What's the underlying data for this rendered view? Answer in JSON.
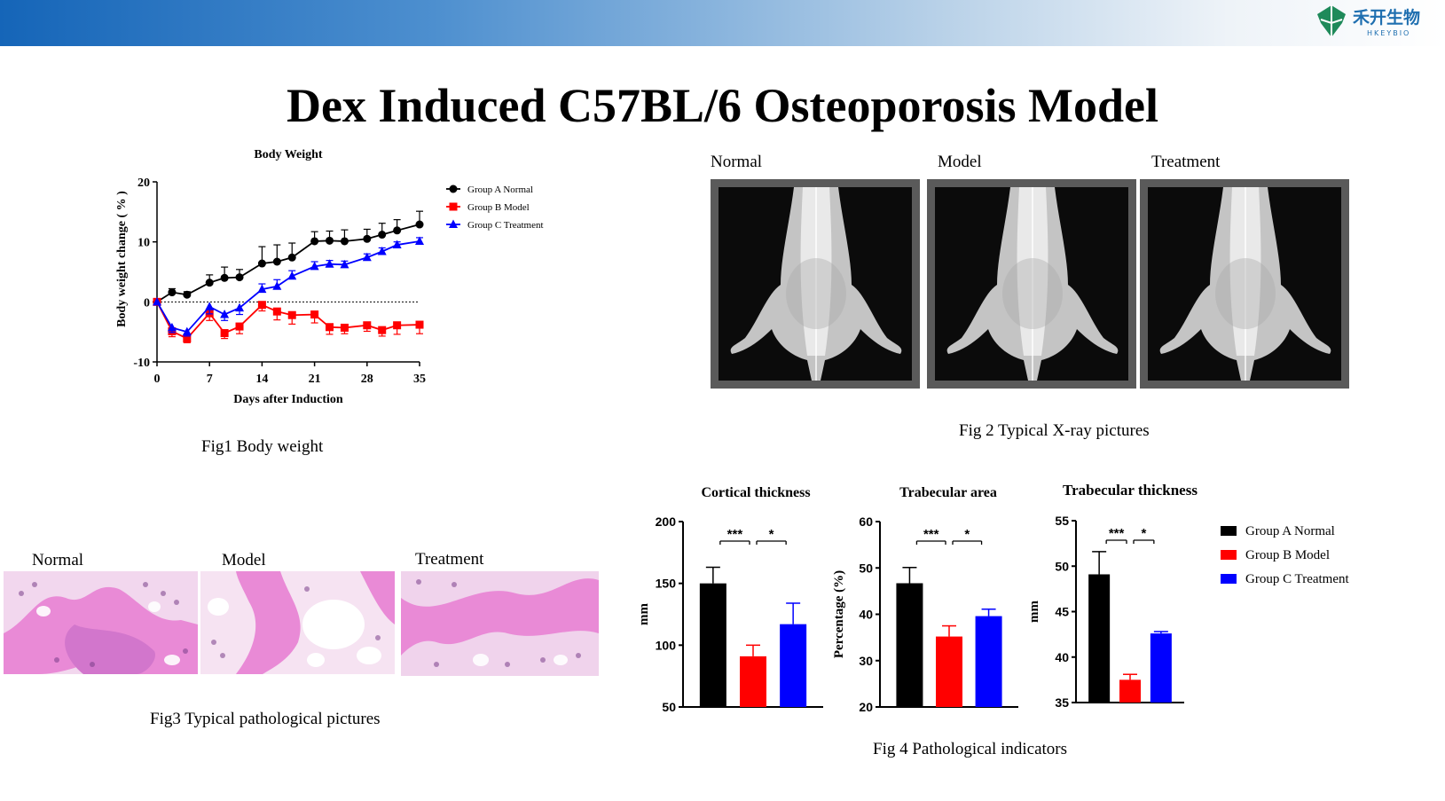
{
  "header": {
    "logo_text": "禾开生物",
    "logo_subtext": "HKEYBIO",
    "colors": {
      "bar_start": "#1565b8",
      "bar_end": "#ffffff",
      "logo": "#1f8a5a"
    }
  },
  "page_title": "Dex Induced C57BL/6 Osteoporosis Model",
  "fig1": {
    "caption": "Fig1 Body weight",
    "chart_data": {
      "type": "line",
      "title": "Body Weight",
      "xlabel": "Days after Induction",
      "ylabel": "Body weight change ( % )",
      "xlim": [
        0,
        35
      ],
      "ylim": [
        -10,
        20
      ],
      "xticks": [
        "0",
        "7",
        "14",
        "21",
        "28",
        "35"
      ],
      "yticks": [
        "-10",
        "0",
        "10",
        "20"
      ],
      "reference_line_y": 0,
      "legend_position": "right",
      "series": [
        {
          "name": "Group A Normal",
          "color": "#000000",
          "marker": "circle",
          "x": [
            0,
            2,
            4,
            7,
            9,
            11,
            14,
            16,
            18,
            21,
            23,
            25,
            28,
            30,
            32,
            35
          ],
          "y": [
            0,
            1.6,
            1.2,
            3.2,
            4.0,
            4.1,
            6.4,
            6.7,
            7.4,
            10.1,
            10.2,
            10.1,
            10.5,
            11.2,
            11.9,
            12.9
          ],
          "err": [
            0,
            0.6,
            0.5,
            1.3,
            1.8,
            1.3,
            2.8,
            2.8,
            2.4,
            1.6,
            1.6,
            1.9,
            1.6,
            1.9,
            1.8,
            2.2
          ]
        },
        {
          "name": "Group B Model",
          "color": "#ff0000",
          "marker": "square",
          "x": [
            0,
            2,
            4,
            7,
            9,
            11,
            14,
            16,
            18,
            21,
            23,
            25,
            28,
            30,
            32,
            35
          ],
          "y": [
            0,
            -4.9,
            -6.1,
            -1.9,
            -5.2,
            -4.1,
            -0.5,
            -1.6,
            -2.2,
            -2.1,
            -4.2,
            -4.3,
            -3.9,
            -4.7,
            -3.9,
            -3.8
          ],
          "err": [
            0,
            0.9,
            0.7,
            1.2,
            0.9,
            1.2,
            1.0,
            1.4,
            1.5,
            1.4,
            1.2,
            1.0,
            1.0,
            1.0,
            1.5,
            1.5
          ]
        },
        {
          "name": "Group C Treatment",
          "color": "#0000ff",
          "marker": "triangle",
          "x": [
            0,
            2,
            4,
            7,
            9,
            11,
            14,
            16,
            18,
            21,
            23,
            25,
            28,
            30,
            32,
            35
          ],
          "y": [
            0,
            -4.3,
            -5.0,
            -0.8,
            -2.1,
            -1.0,
            2.1,
            2.6,
            4.3,
            5.9,
            6.3,
            6.2,
            7.4,
            8.4,
            9.5,
            10.1
          ],
          "err": [
            0,
            0.8,
            0.7,
            1.2,
            1.0,
            1.1,
            0.9,
            1.1,
            0.9,
            0.8,
            0.6,
            0.6,
            0.6,
            0.6,
            0.5,
            0.6
          ]
        }
      ]
    }
  },
  "fig2": {
    "caption": "Fig 2 Typical X-ray  pictures",
    "labels": [
      "Normal",
      "Model",
      "Treatment"
    ]
  },
  "fig3": {
    "caption": "Fig3 Typical pathological pictures",
    "labels": [
      "Normal",
      "Model",
      "Treatment"
    ]
  },
  "fig4": {
    "caption": "Fig 4 Pathological indicators",
    "legend": [
      "Group A Normal",
      "Group B Model",
      "Group C Treatment"
    ],
    "colors": [
      "#000000",
      "#ff0000",
      "#0000ff"
    ],
    "charts": [
      {
        "type": "bar",
        "title": "Cortical thickness",
        "ylabel": "mm",
        "ylim": [
          50,
          200
        ],
        "yticks": [
          "50",
          "100",
          "150",
          "200"
        ],
        "values": [
          150,
          91,
          117
        ],
        "err": [
          13,
          9,
          17
        ],
        "significance": [
          "***",
          "*"
        ]
      },
      {
        "type": "bar",
        "title": "Trabecular area",
        "ylabel": "Percentage (%)",
        "ylim": [
          20,
          60
        ],
        "yticks": [
          "20",
          "30",
          "40",
          "50",
          "60"
        ],
        "values": [
          46.7,
          35.2,
          39.6
        ],
        "err": [
          3.4,
          2.3,
          1.5
        ],
        "significance": [
          "***",
          "*"
        ]
      },
      {
        "type": "bar",
        "title": "Trabecular thickness",
        "ylabel": "mm",
        "ylim": [
          35,
          55
        ],
        "yticks": [
          "35",
          "40",
          "45",
          "50",
          "55"
        ],
        "values": [
          49.1,
          37.5,
          42.6
        ],
        "err": [
          2.5,
          0.6,
          0.2
        ],
        "significance": [
          "***",
          "*"
        ]
      }
    ]
  }
}
